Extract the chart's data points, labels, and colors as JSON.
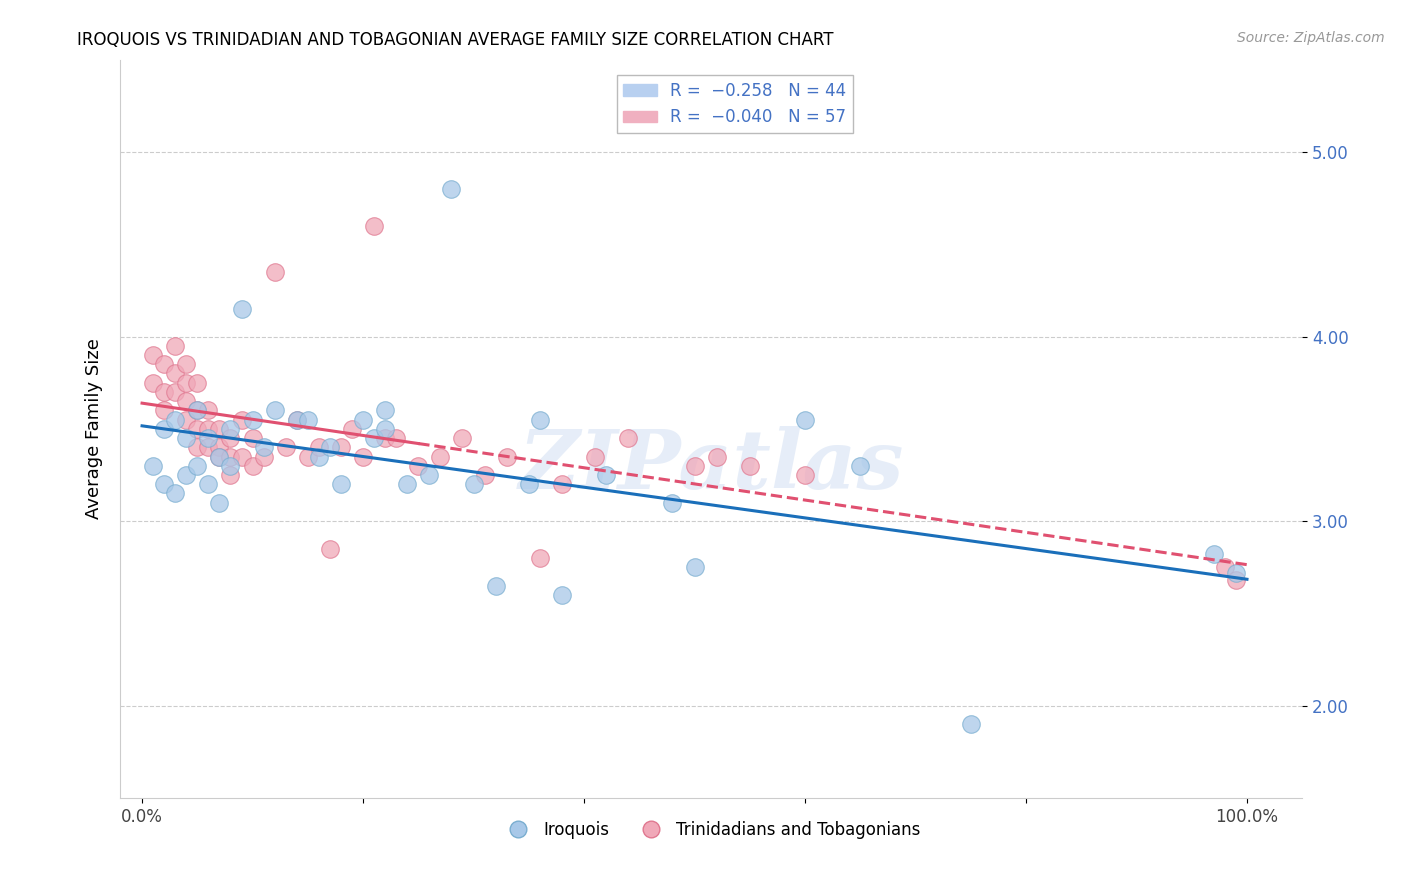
{
  "title": "IROQUOIS VS TRINIDADIAN AND TOBAGONIAN AVERAGE FAMILY SIZE CORRELATION CHART",
  "source": "Source: ZipAtlas.com",
  "ylabel": "Average Family Size",
  "watermark": "ZIPatlas",
  "iroquois_color": "#a8c8e8",
  "iroquois_edge_color": "#7aaed0",
  "trinidadian_color": "#f0a8b8",
  "trinidadian_edge_color": "#e07890",
  "iroquois_line_color": "#1a6fba",
  "trinidadian_line_color": "#e05070",
  "ylim": [
    1.5,
    5.5
  ],
  "xlim": [
    -0.02,
    1.05
  ],
  "yticks": [
    2.0,
    3.0,
    4.0,
    5.0
  ],
  "xtick_positions": [
    0.0,
    0.2,
    0.4,
    0.6,
    0.8,
    1.0
  ],
  "xtick_labels": [
    "0.0%",
    "",
    "",
    "",
    "",
    "100.0%"
  ],
  "iroquois_x": [
    0.01,
    0.02,
    0.02,
    0.03,
    0.03,
    0.04,
    0.04,
    0.05,
    0.05,
    0.06,
    0.06,
    0.07,
    0.07,
    0.08,
    0.08,
    0.09,
    0.1,
    0.11,
    0.12,
    0.14,
    0.15,
    0.16,
    0.17,
    0.18,
    0.2,
    0.21,
    0.22,
    0.22,
    0.24,
    0.26,
    0.28,
    0.3,
    0.32,
    0.35,
    0.36,
    0.38,
    0.42,
    0.48,
    0.5,
    0.6,
    0.65,
    0.75,
    0.97,
    0.99
  ],
  "iroquois_y": [
    3.3,
    3.5,
    3.2,
    3.55,
    3.15,
    3.45,
    3.25,
    3.6,
    3.3,
    3.45,
    3.2,
    3.35,
    3.1,
    3.5,
    3.3,
    4.15,
    3.55,
    3.4,
    3.6,
    3.55,
    3.55,
    3.35,
    3.4,
    3.2,
    3.55,
    3.45,
    3.5,
    3.6,
    3.2,
    3.25,
    4.8,
    3.2,
    2.65,
    3.2,
    3.55,
    2.6,
    3.25,
    3.1,
    2.75,
    3.55,
    3.3,
    1.9,
    2.82,
    2.72
  ],
  "trinidadian_x": [
    0.01,
    0.01,
    0.02,
    0.02,
    0.02,
    0.03,
    0.03,
    0.03,
    0.04,
    0.04,
    0.04,
    0.04,
    0.05,
    0.05,
    0.05,
    0.05,
    0.06,
    0.06,
    0.06,
    0.07,
    0.07,
    0.07,
    0.08,
    0.08,
    0.08,
    0.09,
    0.09,
    0.1,
    0.1,
    0.11,
    0.12,
    0.13,
    0.14,
    0.15,
    0.16,
    0.17,
    0.18,
    0.19,
    0.2,
    0.21,
    0.22,
    0.23,
    0.25,
    0.27,
    0.29,
    0.31,
    0.33,
    0.36,
    0.38,
    0.41,
    0.44,
    0.5,
    0.52,
    0.55,
    0.6,
    0.98,
    0.99
  ],
  "trinidadian_y": [
    3.75,
    3.9,
    3.85,
    3.7,
    3.6,
    3.95,
    3.8,
    3.7,
    3.85,
    3.75,
    3.65,
    3.55,
    3.75,
    3.6,
    3.5,
    3.4,
    3.6,
    3.5,
    3.4,
    3.5,
    3.4,
    3.35,
    3.45,
    3.35,
    3.25,
    3.55,
    3.35,
    3.45,
    3.3,
    3.35,
    4.35,
    3.4,
    3.55,
    3.35,
    3.4,
    2.85,
    3.4,
    3.5,
    3.35,
    4.6,
    3.45,
    3.45,
    3.3,
    3.35,
    3.45,
    3.25,
    3.35,
    2.8,
    3.2,
    3.35,
    3.45,
    3.3,
    3.35,
    3.3,
    3.25,
    2.75,
    2.68
  ]
}
